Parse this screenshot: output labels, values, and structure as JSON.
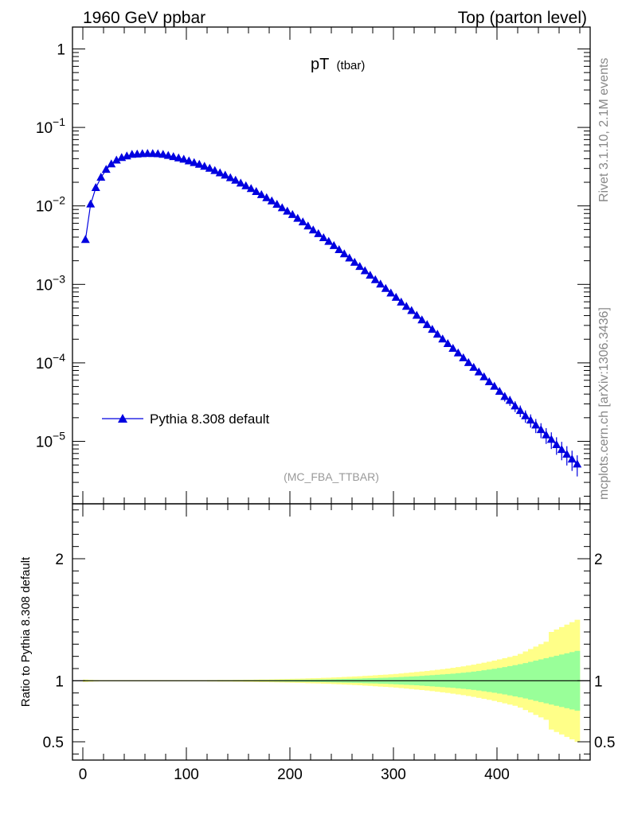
{
  "header": {
    "left": "1960 GeV ppbar",
    "right": "Top (parton level)"
  },
  "plot_title_main": "pT",
  "plot_title_sub": "(tbar)",
  "watermark": "(MC_FBA_TTBAR)",
  "side_text": {
    "rivet": "Rivet 3.1.10,  2.1M events",
    "mcplots": "mcplots.cern.ch [arXiv:1306.3436]"
  },
  "ratio_ylabel": "Ratio to Pythia 8.308 default",
  "colors": {
    "series": "#0000e0",
    "band_inner": "#99ff99",
    "band_outer": "#ffff88"
  },
  "chart_data": [
    {
      "type": "line",
      "scale_y": "log",
      "xlim": [
        -10,
        490
      ],
      "ylim": [
        1.6e-06,
        1.9
      ],
      "y_ticks": [
        {
          "v": 1,
          "label": "1",
          "exp": ""
        },
        {
          "v": 0.1,
          "label": "10",
          "exp": "−1"
        },
        {
          "v": 0.01,
          "label": "10",
          "exp": "−2"
        },
        {
          "v": 0.001,
          "label": "10",
          "exp": "−3"
        },
        {
          "v": 0.0001,
          "label": "10",
          "exp": "−4"
        },
        {
          "v": 1e-05,
          "label": "10",
          "exp": "−5"
        }
      ],
      "legend_position": "bottom-left",
      "series": [
        {
          "name": "Pythia 8.308 default",
          "marker": "triangle",
          "x": [
            2.5,
            7.5,
            12.5,
            17.5,
            22.5,
            27.5,
            32.5,
            37.5,
            42.5,
            47.5,
            52.5,
            57.5,
            62.5,
            67.5,
            72.5,
            77.5,
            82.5,
            87.5,
            92.5,
            97.5,
            102.5,
            107.5,
            112.5,
            117.5,
            122.5,
            127.5,
            132.5,
            137.5,
            142.5,
            147.5,
            152.5,
            157.5,
            162.5,
            167.5,
            172.5,
            177.5,
            182.5,
            187.5,
            192.5,
            197.5,
            202.5,
            207.5,
            212.5,
            217.5,
            222.5,
            227.5,
            232.5,
            237.5,
            242.5,
            247.5,
            252.5,
            257.5,
            262.5,
            267.5,
            272.5,
            277.5,
            282.5,
            287.5,
            292.5,
            297.5,
            302.5,
            307.5,
            312.5,
            317.5,
            322.5,
            327.5,
            332.5,
            337.5,
            342.5,
            347.5,
            352.5,
            357.5,
            362.5,
            367.5,
            372.5,
            377.5,
            382.5,
            387.5,
            392.5,
            397.5,
            402.5,
            407.5,
            412.5,
            417.5,
            422.5,
            427.5,
            432.5,
            437.5,
            442.5,
            447.5,
            452.5,
            457.5,
            462.5,
            467.5,
            472.5,
            477.5
          ],
          "y": [
            0.0037,
            0.0105,
            0.017,
            0.023,
            0.029,
            0.034,
            0.038,
            0.041,
            0.043,
            0.045,
            0.0455,
            0.046,
            0.0462,
            0.0461,
            0.0458,
            0.045,
            0.0436,
            0.0421,
            0.0405,
            0.039,
            0.0372,
            0.0354,
            0.0336,
            0.0317,
            0.0299,
            0.028,
            0.0262,
            0.0245,
            0.0227,
            0.0211,
            0.0194,
            0.0179,
            0.0165,
            0.0151,
            0.0138,
            0.0126,
            0.0115,
            0.0104,
            0.0094,
            0.0085,
            0.0077,
            0.0069,
            0.0062,
            0.0055,
            0.0049,
            0.0044,
            0.0039,
            0.0035,
            0.0031,
            0.00275,
            0.00243,
            0.00215,
            0.0019,
            0.00168,
            0.00148,
            0.0013,
            0.00114,
            0.001,
            0.00088,
            0.00077,
            0.00068,
            0.00059,
            0.00052,
            0.00046,
            0.0004,
            0.00035,
            0.000305,
            0.000265,
            0.00023,
            0.0002,
            0.000175,
            0.000152,
            0.000133,
            0.000115,
            0.0001,
            8.7e-05,
            7.6e-05,
            6.6e-05,
            5.7e-05,
            5e-05,
            4.3e-05,
            3.7e-05,
            3.3e-05,
            2.8e-05,
            2.45e-05,
            2.1e-05,
            1.85e-05,
            1.6e-05,
            1.4e-05,
            1.2e-05,
            1.05e-05,
            9e-06,
            7.8e-06,
            6.8e-06,
            5.9e-06,
            5.1e-06
          ]
        }
      ]
    },
    {
      "type": "area",
      "xlim": [
        -10,
        490
      ],
      "ylim": [
        0.35,
        2.45
      ],
      "xlabel": "",
      "ylabel": "Ratio to Pythia 8.308 default",
      "x_ticks": [
        0,
        100,
        200,
        300,
        400
      ],
      "y_ticks": [
        0.5,
        1,
        2
      ],
      "reference": 1,
      "bin_width": 5,
      "inner_band": [
        0.004,
        0.003,
        0.0025,
        0.002,
        0.002,
        0.002,
        0.002,
        0.002,
        0.002,
        0.002,
        0.002,
        0.002,
        0.002,
        0.002,
        0.002,
        0.002,
        0.002,
        0.002,
        0.002,
        0.002,
        0.002,
        0.002,
        0.002,
        0.002,
        0.0025,
        0.0025,
        0.003,
        0.003,
        0.003,
        0.0035,
        0.0035,
        0.004,
        0.004,
        0.0045,
        0.005,
        0.005,
        0.0055,
        0.006,
        0.0065,
        0.007,
        0.0075,
        0.008,
        0.0085,
        0.009,
        0.01,
        0.0105,
        0.011,
        0.012,
        0.013,
        0.014,
        0.015,
        0.016,
        0.017,
        0.018,
        0.02,
        0.021,
        0.022,
        0.024,
        0.025,
        0.027,
        0.029,
        0.031,
        0.033,
        0.035,
        0.037,
        0.04,
        0.043,
        0.046,
        0.049,
        0.052,
        0.055,
        0.058,
        0.062,
        0.066,
        0.07,
        0.075,
        0.08,
        0.086,
        0.092,
        0.098,
        0.105,
        0.112,
        0.12,
        0.128,
        0.136,
        0.145,
        0.155,
        0.165,
        0.175,
        0.185,
        0.195,
        0.205,
        0.215,
        0.225,
        0.235,
        0.245
      ],
      "outer_band": [
        0.01,
        0.008,
        0.006,
        0.005,
        0.005,
        0.005,
        0.005,
        0.005,
        0.005,
        0.005,
        0.005,
        0.005,
        0.005,
        0.005,
        0.005,
        0.005,
        0.005,
        0.005,
        0.005,
        0.005,
        0.005,
        0.005,
        0.005,
        0.005,
        0.006,
        0.006,
        0.007,
        0.007,
        0.007,
        0.008,
        0.008,
        0.009,
        0.009,
        0.01,
        0.011,
        0.011,
        0.012,
        0.013,
        0.014,
        0.015,
        0.016,
        0.017,
        0.018,
        0.02,
        0.021,
        0.022,
        0.024,
        0.025,
        0.027,
        0.029,
        0.031,
        0.033,
        0.035,
        0.037,
        0.04,
        0.042,
        0.045,
        0.048,
        0.05,
        0.053,
        0.056,
        0.06,
        0.064,
        0.068,
        0.072,
        0.076,
        0.08,
        0.085,
        0.09,
        0.095,
        0.1,
        0.106,
        0.112,
        0.118,
        0.125,
        0.132,
        0.14,
        0.148,
        0.156,
        0.165,
        0.175,
        0.185,
        0.195,
        0.205,
        0.22,
        0.24,
        0.26,
        0.28,
        0.3,
        0.32,
        0.4,
        0.42,
        0.44,
        0.46,
        0.48,
        0.5
      ]
    }
  ]
}
